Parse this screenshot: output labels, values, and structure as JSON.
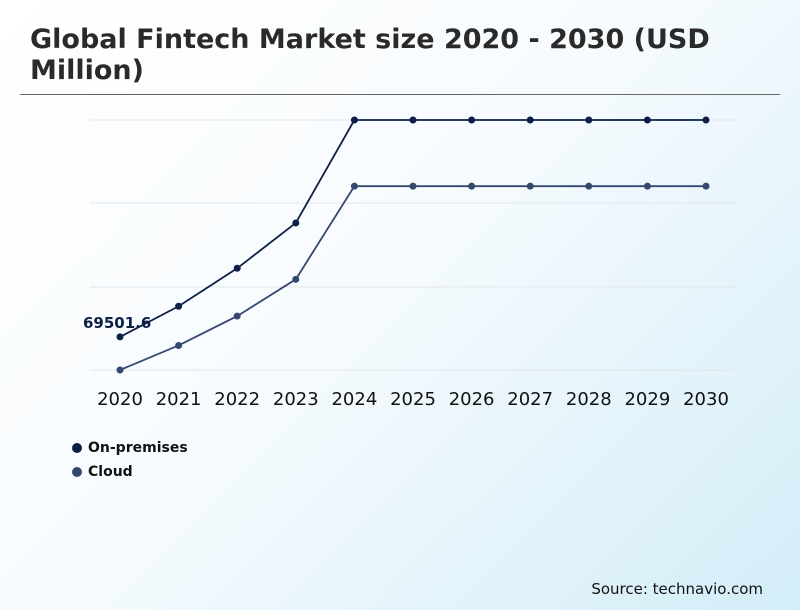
{
  "colors": {
    "on_premises": "#0c1f45",
    "cloud": "#34486f",
    "grid": "#e3e6ea",
    "text": "#111111"
  },
  "chart_data": {
    "type": "line",
    "title": "Global Fintech Market size 2020 - 2030 (USD Million)",
    "xlabel": "",
    "ylabel": "",
    "categories": [
      "2020",
      "2021",
      "2022",
      "2023",
      "2024",
      "2025",
      "2026",
      "2027",
      "2028",
      "2029",
      "2030"
    ],
    "series": [
      {
        "name": "On-premises",
        "values": [
          69501.6,
          82000,
          97500,
          116000,
          158000,
          158000,
          158000,
          158000,
          158000,
          158000,
          158000
        ]
      },
      {
        "name": "Cloud",
        "values": [
          56000,
          66000,
          78000,
          93000,
          131000,
          131000,
          131000,
          131000,
          131000,
          131000,
          131000
        ]
      }
    ],
    "ylim": [
      50000,
      165000
    ],
    "annotations": [
      {
        "series": "On-premises",
        "category": "2020",
        "text": "69501.6"
      }
    ],
    "grid": true,
    "legend": "bottom-left"
  },
  "legend": {
    "items": [
      "On-premises",
      "Cloud"
    ]
  },
  "source": "Source: technavio.com"
}
